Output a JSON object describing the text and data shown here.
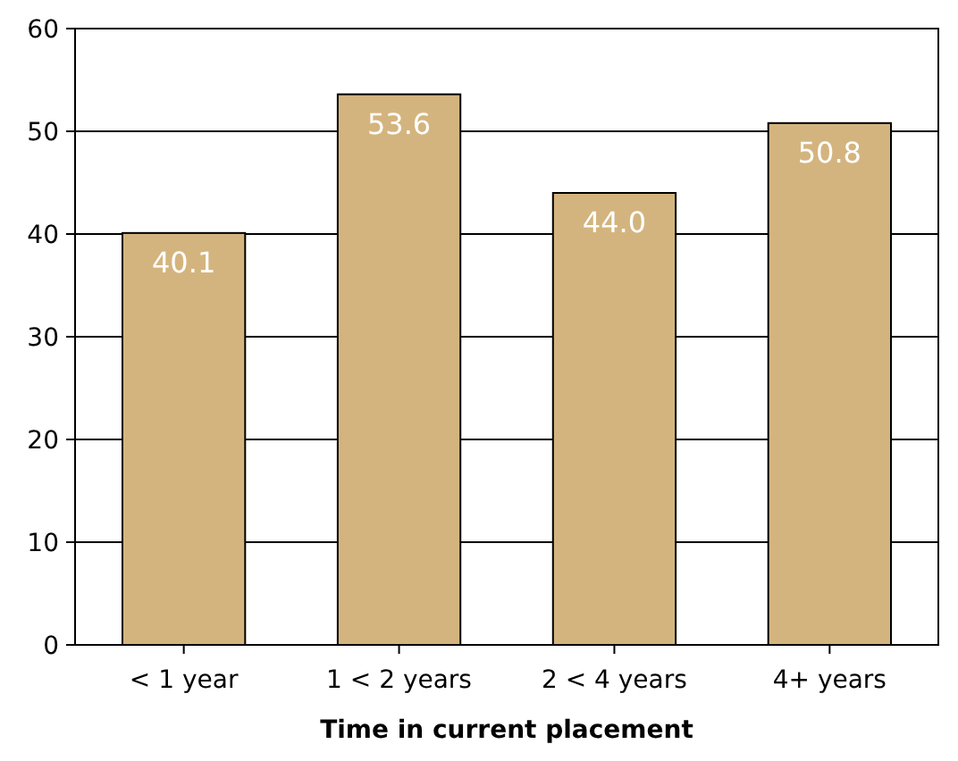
{
  "chart_data": {
    "type": "bar",
    "xlabel": "Time in current placement",
    "categories": [
      "< 1 year",
      "1 < 2 years",
      "2 < 4 years",
      "4+ years"
    ],
    "values": [
      40.1,
      53.6,
      44.0,
      50.8
    ],
    "value_labels": [
      "40.1",
      "53.6",
      "44.0",
      "50.8"
    ],
    "color": "#d4b47e",
    "ylim": [
      0,
      60
    ],
    "yticks": [
      0,
      10,
      20,
      30,
      40,
      50,
      60
    ],
    "grid": "y"
  }
}
